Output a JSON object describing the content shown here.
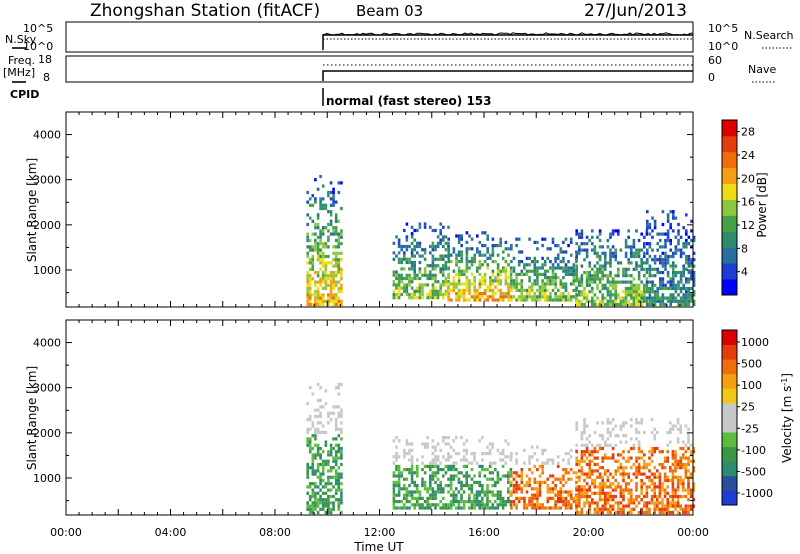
{
  "header": {
    "station": "Zhongshan Station (fitACF)",
    "beam": "Beam 03",
    "date": "27/Jun/2013"
  },
  "params": {
    "nsky_label": "N.Sky",
    "nsky_ticks": [
      "10^5",
      "10^0"
    ],
    "nsearch_label": "N.Search",
    "nsearch_ticks": [
      "10^5",
      "10^0"
    ],
    "freq_label_1": "Freq.",
    "freq_label_2": "[MHz]",
    "freq_ticks": [
      "18",
      "8"
    ],
    "nave_label": "Nave",
    "nave_ticks": [
      "60",
      "0"
    ],
    "cpid_label": "CPID",
    "cpid_value": "normal (fast stereo) 153"
  },
  "chart_data": [
    {
      "type": "heatmap",
      "title": "",
      "xlabel": "Time UT",
      "ylabel": "Slant Range [km]",
      "x_ticks": [
        "00:00",
        "04:00",
        "08:00",
        "12:00",
        "16:00",
        "20:00",
        "00:00"
      ],
      "xlim_hours": [
        0,
        24
      ],
      "y_ticks": [
        1000,
        2000,
        3000,
        4000
      ],
      "ylim": [
        180,
        4500
      ],
      "colorbar": {
        "label": "Power [dB]",
        "ticks": [
          4,
          8,
          12,
          16,
          20,
          24,
          28
        ],
        "range": [
          0,
          30
        ],
        "colors": [
          "#0000ff",
          "#1e3cd2",
          "#286ea0",
          "#2d8c6e",
          "#46a046",
          "#8cc83c",
          "#f0dc14",
          "#f5a014",
          "#f06e0a",
          "#e63c0a",
          "#dc0000"
        ]
      },
      "data_start_hour": 9.2,
      "echo_regions": [
        {
          "t_start": 9.2,
          "t_end": 10.5,
          "r_min": 200,
          "r_max": 3050,
          "level": "high"
        },
        {
          "t_start": 12.5,
          "t_end": 14.6,
          "r_min": 350,
          "r_max": 2000,
          "level": "medium"
        },
        {
          "t_start": 14.6,
          "t_end": 17.0,
          "r_min": 300,
          "r_max": 1800,
          "level": "high"
        },
        {
          "t_start": 17.0,
          "t_end": 19.5,
          "r_min": 300,
          "r_max": 1700,
          "level": "medium"
        },
        {
          "t_start": 19.5,
          "t_end": 22.2,
          "r_min": 200,
          "r_max": 1900,
          "level": "medium"
        },
        {
          "t_start": 22.2,
          "t_end": 24.0,
          "r_min": 200,
          "r_max": 2300,
          "level": "low"
        }
      ]
    },
    {
      "type": "heatmap",
      "title": "",
      "xlabel": "Time UT",
      "ylabel": "Slant Range [km]",
      "x_ticks": [
        "00:00",
        "04:00",
        "08:00",
        "12:00",
        "16:00",
        "20:00",
        "00:00"
      ],
      "xlim_hours": [
        0,
        24
      ],
      "y_ticks": [
        1000,
        2000,
        3000,
        4000
      ],
      "ylim": [
        180,
        4500
      ],
      "colorbar": {
        "label": "Velocity [m s^-1]",
        "ticks": [
          "1000",
          "500",
          "100",
          "25",
          "-25",
          "-100",
          "-500",
          "-1000"
        ],
        "colors": [
          "#1e3cd2",
          "#28509b",
          "#2d8c6e",
          "#3c9646",
          "#5abe3c",
          "#c8c8c8",
          "#c8c8c8",
          "#f0c814",
          "#f5a014",
          "#f06e0a",
          "#e63c0a",
          "#dc0000"
        ]
      },
      "data_start_hour": 9.2,
      "echo_regions": [
        {
          "t_start": 9.2,
          "t_end": 10.5,
          "r_min": 200,
          "r_max": 3050,
          "dominant": "toward"
        },
        {
          "t_start": 12.5,
          "t_end": 17.0,
          "r_min": 300,
          "r_max": 1900,
          "dominant": "toward"
        },
        {
          "t_start": 17.0,
          "t_end": 19.5,
          "r_min": 300,
          "r_max": 1700,
          "dominant": "away"
        },
        {
          "t_start": 19.5,
          "t_end": 24.0,
          "r_min": 200,
          "r_max": 2300,
          "dominant": "away"
        }
      ]
    }
  ]
}
